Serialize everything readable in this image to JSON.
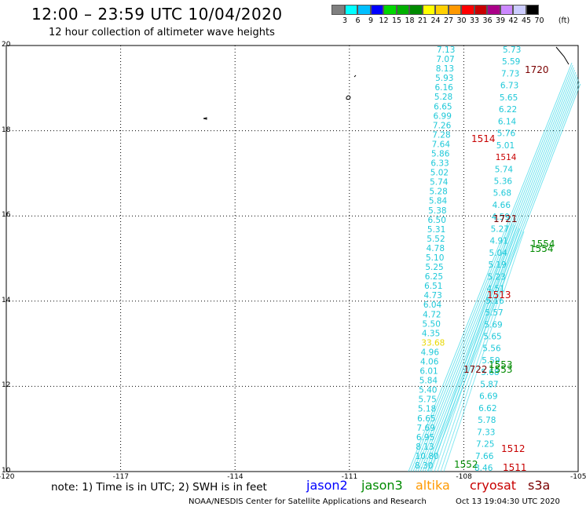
{
  "header": {
    "title": "12:00 – 23:59 UTC 10/04/2020",
    "subtitle": "12 hour collection of altimeter wave heights"
  },
  "colorbar": {
    "colors": [
      "#7f7f7f",
      "#00ffff",
      "#00bfff",
      "#0000ff",
      "#00d800",
      "#00b000",
      "#008a00",
      "#ffff00",
      "#ffd000",
      "#ff9900",
      "#ff0000",
      "#c80000",
      "#aa0088",
      "#cc88ff",
      "#ccccff",
      "#000000"
    ],
    "labels": [
      "3",
      "6",
      "9",
      "12",
      "15",
      "18",
      "21",
      "24",
      "27",
      "30",
      "33",
      "36",
      "39",
      "42",
      "45",
      "70"
    ],
    "unit": "(ft)"
  },
  "axes": {
    "x_ticks": [
      "-120",
      "-117",
      "-114",
      "-111",
      "-108",
      "-105"
    ],
    "y_ticks": [
      "20",
      "18",
      "16",
      "14",
      "12",
      "10"
    ],
    "xlim": [
      -120,
      -105
    ],
    "ylim": [
      10,
      20
    ]
  },
  "tracks": {
    "col_a": [
      "7.13",
      "7.07",
      "8.13",
      "5.93",
      "6.16",
      "5.28",
      "6.65",
      "6.99",
      "7.26",
      "7.28",
      "7.64",
      "5.86",
      "6.33",
      "5.02",
      "5.74",
      "5.28",
      "5.84",
      "5.38",
      "6.50",
      "5.31",
      "5.52",
      "4.78",
      "5.10",
      "5.25",
      "6.25",
      "6.51",
      "4.73",
      "6.04",
      "4.72",
      "5.50",
      "4.35",
      "33.68",
      "4.96",
      "4.06",
      "6.01",
      "5.84",
      "5.40",
      "5.75",
      "5.18",
      "6.65",
      "7.69",
      "6.95",
      "8.13",
      "10.80",
      "8.30"
    ],
    "col_b": [
      "5.73",
      "5.59",
      "7.73",
      "6.73",
      "5.65",
      "6.22",
      "6.14",
      "5.76",
      "5.01",
      "1514",
      "5.74",
      "5.36",
      "5.68",
      "4.66",
      "4.59",
      "5.27",
      "4.91",
      "5.04",
      "5.19",
      "5.23",
      "4.51",
      "5.16",
      "5.57",
      "5.69",
      "5.65",
      "5.56",
      "5.59",
      "5.68",
      "5.87",
      "6.69",
      "6.62",
      "5.78",
      "7.33",
      "7.25",
      "7.66",
      "8.46"
    ]
  },
  "pass_labels": [
    {
      "text": "1720",
      "color": "#7a0000"
    },
    {
      "text": "1514",
      "color": "#c80000"
    },
    {
      "text": "1721",
      "color": "#7a0000"
    },
    {
      "text": "1554",
      "color": "#008a00"
    },
    {
      "text": "1554",
      "color": "#008a00"
    },
    {
      "text": "1513",
      "color": "#c80000"
    },
    {
      "text": "1553",
      "color": "#008a00"
    },
    {
      "text": "1553",
      "color": "#008a00"
    },
    {
      "text": "1722",
      "color": "#7a0000"
    },
    {
      "text": "1512",
      "color": "#c80000"
    },
    {
      "text": "1511",
      "color": "#c80000"
    },
    {
      "text": "1552",
      "color": "#008a00"
    }
  ],
  "footer": {
    "note": "note: 1) Time is in UTC; 2) SWH is in feet",
    "satellites": [
      {
        "name": "jason2",
        "color": "#0000ff"
      },
      {
        "name": "jason3",
        "color": "#008a00"
      },
      {
        "name": "altika",
        "color": "#ff9900"
      },
      {
        "name": "cryosat",
        "color": "#c80000"
      },
      {
        "name": "s3a",
        "color": "#7a0000"
      }
    ],
    "credit": "NOAA/NESDIS Center for Satellite Applications and Research",
    "timestamp": "Oct 13 19:04:30 UTC 2020"
  }
}
